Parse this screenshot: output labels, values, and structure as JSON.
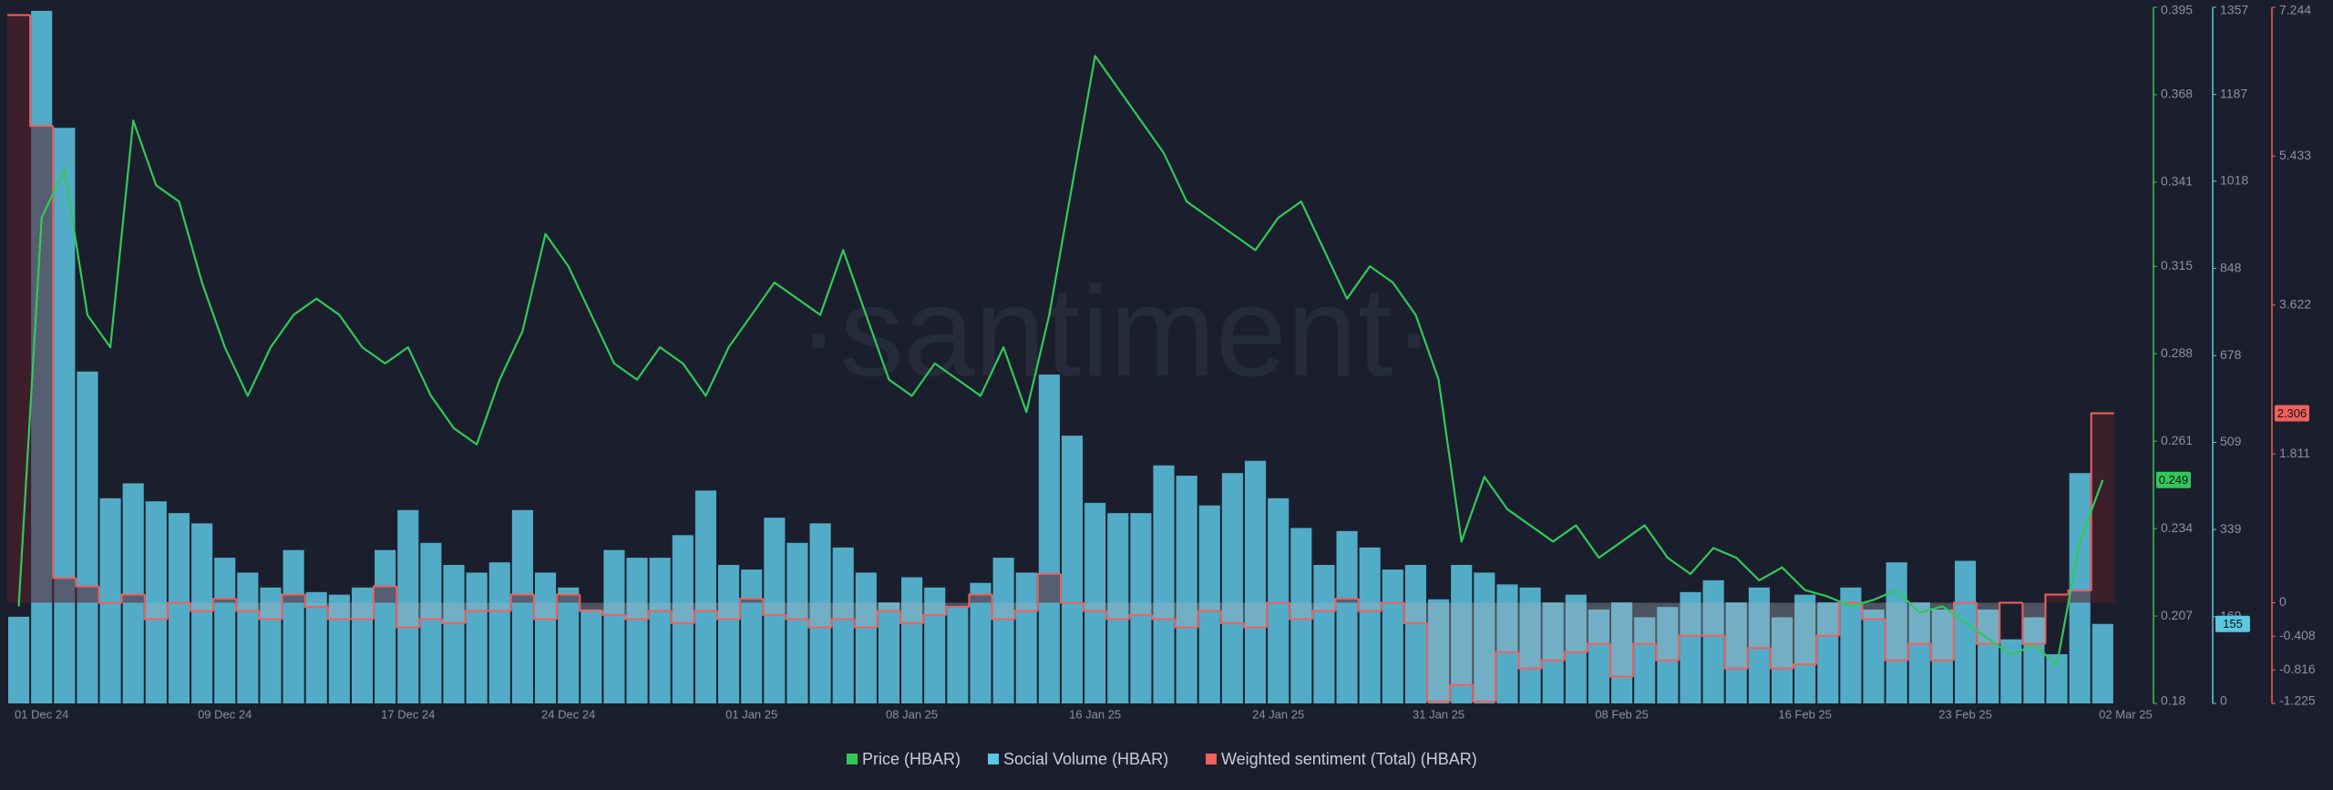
{
  "chart_data": {
    "type": "combo",
    "watermark": "·santiment·",
    "categories": [
      null,
      "01 Dec 24",
      null,
      null,
      null,
      null,
      null,
      null,
      null,
      "09 Dec 24",
      null,
      null,
      null,
      null,
      null,
      null,
      null,
      "17 Dec 24",
      null,
      null,
      null,
      null,
      null,
      null,
      "24 Dec 24",
      null,
      null,
      null,
      null,
      null,
      null,
      null,
      "01 Jan 25",
      null,
      null,
      null,
      null,
      null,
      null,
      "08 Jan 25",
      null,
      null,
      null,
      null,
      null,
      null,
      null,
      "16 Jan 25",
      null,
      null,
      null,
      null,
      null,
      null,
      null,
      "24 Jan 25",
      null,
      null,
      null,
      null,
      null,
      null,
      "31 Jan 25",
      null,
      null,
      null,
      null,
      null,
      null,
      null,
      "08 Feb 25",
      null,
      null,
      null,
      null,
      null,
      null,
      null,
      "16 Feb 25",
      null,
      null,
      null,
      null,
      null,
      null,
      "23 Feb 25",
      null,
      null,
      null,
      null,
      null,
      null,
      "02 Mar 25"
    ],
    "ylim": [
      0.18,
      0.395
    ],
    "yticks": [
      0.18,
      0.207,
      0.234,
      0.261,
      0.288,
      0.315,
      0.341,
      0.368,
      0.395
    ],
    "y2lim": [
      0,
      1357
    ],
    "y2ticks": [
      0,
      169,
      339,
      509,
      678,
      848,
      1018,
      1187,
      1357
    ],
    "y3lim": [
      -1.225,
      7.244
    ],
    "y3ticks": [
      -1.225,
      -0.816,
      -0.408,
      0,
      1.811,
      3.622,
      5.433,
      7.244
    ],
    "series": [
      {
        "name": "Price (HBAR)",
        "color": "#31c95a",
        "type": "line",
        "axis": "y",
        "values": [
          0.21,
          0.33,
          0.345,
          0.3,
          0.29,
          0.36,
          0.34,
          0.335,
          0.31,
          0.29,
          0.275,
          0.29,
          0.3,
          0.305,
          0.3,
          0.29,
          0.285,
          0.29,
          0.275,
          0.265,
          0.26,
          0.28,
          0.295,
          0.325,
          0.315,
          0.3,
          0.285,
          0.28,
          0.29,
          0.285,
          0.275,
          0.29,
          0.3,
          0.31,
          0.305,
          0.3,
          0.32,
          0.3,
          0.28,
          0.275,
          0.285,
          0.28,
          0.275,
          0.29,
          0.27,
          0.3,
          0.34,
          0.38,
          0.37,
          0.36,
          0.35,
          0.335,
          0.33,
          0.325,
          0.32,
          0.33,
          0.335,
          0.32,
          0.305,
          0.315,
          0.31,
          0.3,
          0.28,
          0.23,
          0.25,
          0.24,
          0.235,
          0.23,
          0.235,
          0.225,
          0.23,
          0.235,
          0.225,
          0.22,
          0.228,
          0.225,
          0.218,
          0.222,
          0.215,
          0.213,
          0.21,
          0.212,
          0.215,
          0.208,
          0.21,
          0.205,
          0.2,
          0.195,
          0.198,
          0.192,
          0.23,
          0.249,
          null
        ]
      },
      {
        "name": "Social Volume (HBAR)",
        "color": "#5cc6e3",
        "type": "bar",
        "axis": "y2",
        "values": [
          169,
          1350,
          1122,
          647,
          400,
          429,
          394,
          371,
          351,
          284,
          255,
          226,
          299,
          217,
          212,
          226,
          299,
          377,
          313,
          270,
          255,
          275,
          377,
          255,
          226,
          183,
          299,
          284,
          284,
          328,
          415,
          270,
          261,
          362,
          313,
          351,
          304,
          255,
          197,
          246,
          226,
          188,
          235,
          284,
          255,
          641,
          522,
          391,
          371,
          371,
          464,
          444,
          386,
          449,
          473,
          400,
          342,
          270,
          336,
          304,
          261,
          270,
          203,
          270,
          255,
          232,
          226,
          197,
          212,
          183,
          197,
          168,
          188,
          217,
          240,
          197,
          226,
          168,
          212,
          197,
          226,
          183,
          275,
          197,
          183,
          278,
          183,
          125,
          168,
          96,
          449,
          155,
          null
        ]
      },
      {
        "name": "Weighted sentiment (Total) (HBAR)",
        "color": "#f0605e",
        "type": "step",
        "axis": "y3",
        "values": [
          7.15,
          5.8,
          0.3,
          0.2,
          0,
          0.1,
          -0.2,
          0,
          -0.1,
          0.05,
          -0.1,
          -0.2,
          0.1,
          -0.05,
          -0.2,
          -0.2,
          0.2,
          -0.3,
          -0.2,
          -0.25,
          -0.1,
          -0.1,
          0.1,
          -0.2,
          0.1,
          -0.1,
          -0.15,
          -0.2,
          -0.1,
          -0.25,
          -0.1,
          -0.2,
          0.05,
          -0.15,
          -0.2,
          -0.3,
          -0.2,
          -0.3,
          -0.1,
          -0.25,
          -0.15,
          -0.05,
          0.1,
          -0.2,
          -0.1,
          0.35,
          0,
          -0.1,
          -0.2,
          -0.15,
          -0.2,
          -0.3,
          -0.1,
          -0.25,
          -0.3,
          0,
          -0.2,
          -0.1,
          0.05,
          -0.1,
          0,
          -0.25,
          -1.2,
          -1,
          -1.2,
          -0.6,
          -0.8,
          -0.7,
          -0.6,
          -0.5,
          -0.9,
          -0.5,
          -0.7,
          -0.4,
          -0.4,
          -0.8,
          -0.55,
          -0.8,
          -0.75,
          -0.4,
          0,
          -0.2,
          -0.7,
          -0.5,
          -0.7,
          0,
          -0.5,
          0,
          -0.5,
          0.1,
          0.15,
          2.306,
          null
        ]
      }
    ]
  }
}
